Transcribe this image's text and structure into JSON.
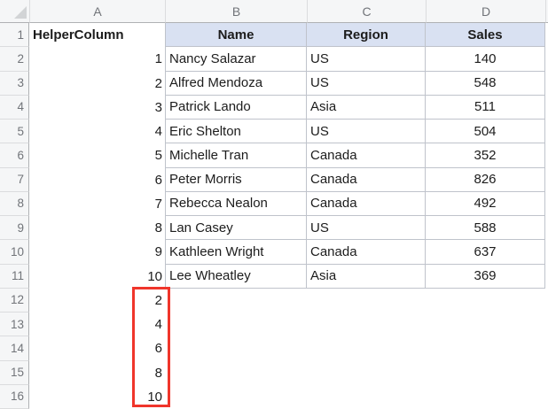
{
  "sheet": {
    "column_letters": [
      "A",
      "B",
      "C",
      "D"
    ],
    "rows": [
      {
        "n": "1",
        "a": "HelperColumn",
        "b": "Name",
        "c": "Region",
        "d": "Sales"
      },
      {
        "n": "2",
        "a": "1",
        "b": "Nancy Salazar",
        "c": "US",
        "d": "140"
      },
      {
        "n": "3",
        "a": "2",
        "b": "Alfred Mendoza",
        "c": "US",
        "d": "548"
      },
      {
        "n": "4",
        "a": "3",
        "b": "Patrick Lando",
        "c": "Asia",
        "d": "511"
      },
      {
        "n": "5",
        "a": "4",
        "b": "Eric Shelton",
        "c": "US",
        "d": "504"
      },
      {
        "n": "6",
        "a": "5",
        "b": "Michelle Tran",
        "c": "Canada",
        "d": "352"
      },
      {
        "n": "7",
        "a": "6",
        "b": "Peter Morris",
        "c": "Canada",
        "d": "826"
      },
      {
        "n": "8",
        "a": "7",
        "b": "Rebecca Nealon",
        "c": "Canada",
        "d": "492"
      },
      {
        "n": "9",
        "a": "8",
        "b": "Lan Casey",
        "c": "US",
        "d": "588"
      },
      {
        "n": "10",
        "a": "9",
        "b": "Kathleen Wright",
        "c": "Canada",
        "d": "637"
      },
      {
        "n": "11",
        "a": "10",
        "b": "Lee Wheatley",
        "c": "Asia",
        "d": "369"
      },
      {
        "n": "12",
        "a": "2",
        "b": "",
        "c": "",
        "d": ""
      },
      {
        "n": "13",
        "a": "4",
        "b": "",
        "c": "",
        "d": ""
      },
      {
        "n": "14",
        "a": "6",
        "b": "",
        "c": "",
        "d": ""
      },
      {
        "n": "15",
        "a": "8",
        "b": "",
        "c": "",
        "d": ""
      },
      {
        "n": "16",
        "a": "10",
        "b": "",
        "c": "",
        "d": ""
      }
    ],
    "highlight": {
      "color": "#F0352B"
    },
    "colors": {
      "table_header_fill": "#D9E1F2",
      "table_border": "#BFC3CB",
      "header_chrome_fill": "#F5F6F7"
    }
  }
}
